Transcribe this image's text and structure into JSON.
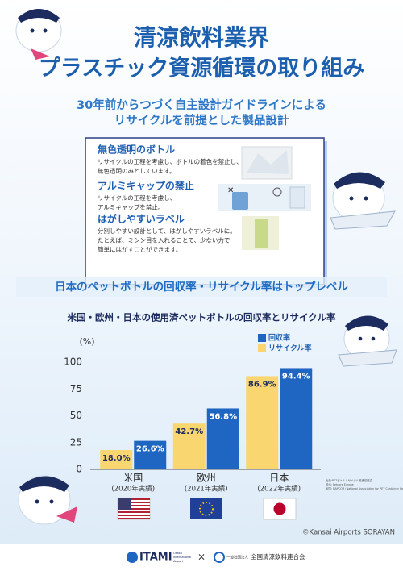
{
  "header": {
    "title_lines": [
      "清涼飲料業界",
      "プラスチック資源循環の取り組み"
    ],
    "subtitle_lines": [
      "30年前からつづく自主設計ガイドラインによる",
      "リサイクルを前提とした製品設計"
    ]
  },
  "features": [
    {
      "heading": "無色透明のボトル",
      "body_lines": [
        "リサイクルの工程を考慮し、ボトルの着色を禁止し、",
        "無色透明のみとしています。"
      ]
    },
    {
      "heading": "アルミキャップの禁止",
      "body_lines": [
        "リサイクルの工程を考慮し、",
        "アルミキャップを禁止。"
      ]
    },
    {
      "heading": "はがしやすいラベル",
      "body_lines": [
        "分別しやすい設計として、はがしやすいラベルに。",
        "たとえば、ミシン目を入れることで、少ない力で",
        "簡単にはがすことができます。"
      ]
    }
  ],
  "section_heading": "日本のペットボトルの回収率・リサイクル率はトップレベル",
  "chart_data": {
    "type": "bar",
    "title": "米国・欧州・日本の使用済ペットボトルの回収率とリサイクル率",
    "y_label": "(%)",
    "categories": [
      "米国",
      "欧州",
      "日本"
    ],
    "category_periods": [
      "(2020年実績)",
      "(2021年実績)",
      "(2022年実績)"
    ],
    "series": [
      {
        "name": "回収率",
        "color": "#1f66c2",
        "values": [
          26.6,
          56.8,
          94.4
        ],
        "value_labels": [
          "26.6%",
          "56.8%",
          "94.4%"
        ]
      },
      {
        "name": "リサイクル率",
        "color": "#f9d66f",
        "values": [
          18.0,
          42.7,
          86.9
        ],
        "value_labels": [
          "18.0%",
          "42.7%",
          "86.9%"
        ]
      }
    ],
    "ylim": [
      0,
      100
    ],
    "yticks": [
      0,
      25,
      50,
      75,
      100
    ],
    "grid": false,
    "legend": "top-right",
    "source_lines": [
      "出典:PETボトルリサイクル推進協議会",
      "欧州: Petcore Europe",
      "米国: NAPCOR (National Association for PET Container Resources)"
    ]
  },
  "copyright": "©Kansai Airports SORAYAN",
  "footer": {
    "logo_left": "ITAMI",
    "logo_left_sub": [
      "Osaka",
      "International",
      "Airport"
    ],
    "cross": "×",
    "logo_right_prefix": "一般社団法人",
    "logo_right": "全国清涼飲料連合会"
  }
}
